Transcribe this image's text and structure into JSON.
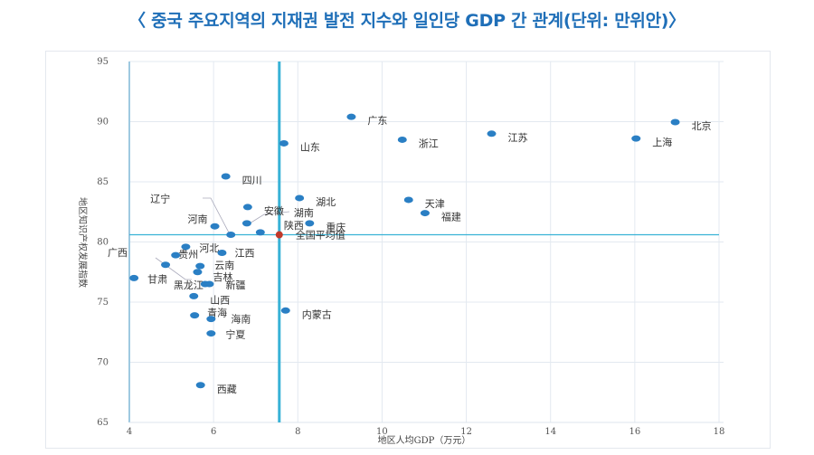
{
  "title": "〈 중국 주요지역의 지재권 발전 지수와 일인당 GDP 간 관계(단위: 만위안)〉",
  "chart_data": {
    "type": "scatter",
    "title": "〈 중국 주요지역의 지재권 발전 지수와 일인당 GDP 간 관계(단위: 만위안)〉",
    "xlabel": "地区人均GDP（万元）",
    "ylabel": "地区知识产权发展指数",
    "xlim": [
      4,
      18
    ],
    "ylim": [
      65,
      95
    ],
    "xticks": [
      "4",
      "6",
      "8",
      "10",
      "12",
      "14",
      "16",
      "18"
    ],
    "yticks": [
      "65",
      "70",
      "75",
      "80",
      "85",
      "90",
      "95"
    ],
    "grid": true,
    "reference_lines": {
      "x": 7.56,
      "y": 80.6
    },
    "colors": {
      "point": "#2a7fc4",
      "average": "#c0392b",
      "refline": "#38b2d6",
      "grid": "#e3e9f0"
    },
    "points": [
      {
        "name": "北京",
        "x": 16.96,
        "y": 89.96
      },
      {
        "name": "广东",
        "x": 9.27,
        "y": 90.4
      },
      {
        "name": "江苏",
        "x": 12.6,
        "y": 89.0
      },
      {
        "name": "上海",
        "x": 16.03,
        "y": 88.6
      },
      {
        "name": "浙江",
        "x": 10.48,
        "y": 88.5
      },
      {
        "name": "山东",
        "x": 7.67,
        "y": 88.2
      },
      {
        "name": "四川",
        "x": 6.29,
        "y": 85.45
      },
      {
        "name": "湖北",
        "x": 8.04,
        "y": 83.65
      },
      {
        "name": "天津",
        "x": 10.63,
        "y": 83.5
      },
      {
        "name": "福建",
        "x": 11.02,
        "y": 82.4
      },
      {
        "name": "安徽",
        "x": 6.81,
        "y": 82.9
      },
      {
        "name": "湖南",
        "x": 6.79,
        "y": 81.55
      },
      {
        "name": "重庆",
        "x": 8.28,
        "y": 81.55
      },
      {
        "name": "陕西",
        "x": 7.11,
        "y": 80.8
      },
      {
        "name": "河南",
        "x": 6.03,
        "y": 81.3
      },
      {
        "name": "辽宁",
        "x": 6.41,
        "y": 80.6
      },
      {
        "name": "河北",
        "x": 5.34,
        "y": 79.6
      },
      {
        "name": "江西",
        "x": 6.2,
        "y": 79.1
      },
      {
        "name": "贵州",
        "x": 5.1,
        "y": 78.9
      },
      {
        "name": "广西",
        "x": 4.86,
        "y": 78.1
      },
      {
        "name": "云南",
        "x": 5.68,
        "y": 78.0
      },
      {
        "name": "吉林",
        "x": 5.62,
        "y": 77.5
      },
      {
        "name": "甘肃",
        "x": 4.11,
        "y": 77.0
      },
      {
        "name": "黑龙江",
        "x": 5.8,
        "y": 76.5
      },
      {
        "name": "新疆",
        "x": 5.9,
        "y": 76.5
      },
      {
        "name": "山西",
        "x": 5.53,
        "y": 75.5
      },
      {
        "name": "内蒙古",
        "x": 7.71,
        "y": 74.3
      },
      {
        "name": "青海",
        "x": 5.55,
        "y": 73.9
      },
      {
        "name": "海南",
        "x": 5.94,
        "y": 73.6
      },
      {
        "name": "宁夏",
        "x": 5.94,
        "y": 72.4
      },
      {
        "name": "西藏",
        "x": 5.69,
        "y": 68.1
      }
    ],
    "average": {
      "name": "全国平均值",
      "x": 7.56,
      "y": 80.6
    }
  }
}
